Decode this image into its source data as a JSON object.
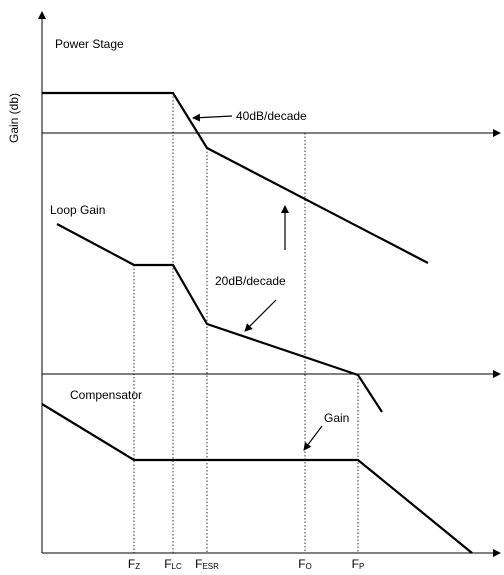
{
  "diagram": {
    "axis_label": "Gain (db)",
    "curves": [
      {
        "label": "Power Stage"
      },
      {
        "label": "Loop Gain"
      },
      {
        "label": "Compensator"
      }
    ],
    "annotations": [
      "40dB/decade",
      "20dB/decade",
      "Gain"
    ],
    "frequency_labels": [
      {
        "base": "F",
        "sub": "Z"
      },
      {
        "base": "F",
        "sub": "LC"
      },
      {
        "base": "F",
        "sub": "ESR"
      },
      {
        "base": "F",
        "sub": "O"
      },
      {
        "base": "F",
        "sub": "P"
      }
    ]
  }
}
